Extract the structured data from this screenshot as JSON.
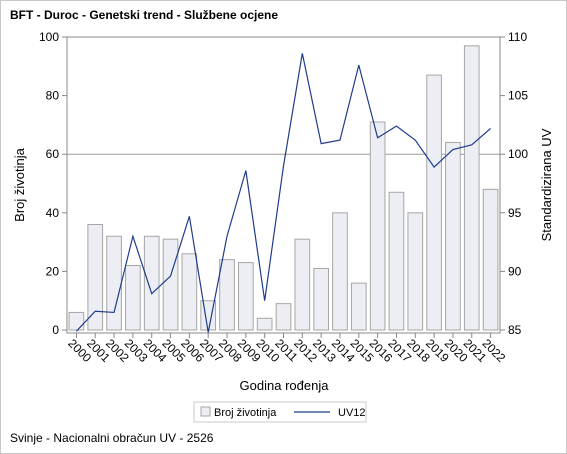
{
  "title": "BFT - Duroc - Genetski trend - Službene ocjene",
  "footnote": "Svinje - Nacionalni obračun UV - 2526",
  "colors": {
    "bar_fill": "#eceef3",
    "bar_stroke": "#a6a6a6",
    "line": "#1f3c8c",
    "axis": "#888888",
    "reference_line": "#9a9a9a"
  },
  "chart_data": {
    "type": "bar",
    "title": "BFT - Duroc - Genetski trend - Službene ocjene",
    "xlabel": "Godina rođenja",
    "ylabel": "Broj životinja",
    "y2label": "Standardizirana UV",
    "categories": [
      "2000",
      "2001",
      "2002",
      "2003",
      "2004",
      "2005",
      "2006",
      "2007",
      "2008",
      "2009",
      "2010",
      "2011",
      "2012",
      "2013",
      "2014",
      "2015",
      "2016",
      "2017",
      "2018",
      "2019",
      "2020",
      "2021",
      "2022"
    ],
    "series": [
      {
        "name": "Broj životinja",
        "type": "bar",
        "axis": "left",
        "values": [
          6,
          36,
          32,
          22,
          32,
          31,
          26,
          10,
          24,
          23,
          4,
          9,
          31,
          21,
          40,
          16,
          71,
          47,
          40,
          87,
          64,
          97,
          48
        ]
      },
      {
        "name": "UV12",
        "type": "line",
        "axis": "right",
        "values": [
          84.9,
          86.6,
          86.5,
          93.0,
          88.1,
          89.6,
          94.7,
          84.8,
          93.0,
          98.6,
          87.5,
          99.0,
          108.6,
          100.9,
          101.2,
          107.6,
          101.4,
          102.4,
          101.2,
          98.9,
          100.4,
          100.8,
          102.2
        ]
      }
    ],
    "ylim": [
      0,
      100
    ],
    "y_ticks": [
      0,
      20,
      40,
      60,
      80,
      100
    ],
    "y2lim": [
      85,
      110
    ],
    "y2_ticks": [
      85,
      90,
      95,
      100,
      105,
      110
    ],
    "reference_line_y2": 100,
    "grid": false,
    "legend_position": "bottom-center"
  }
}
